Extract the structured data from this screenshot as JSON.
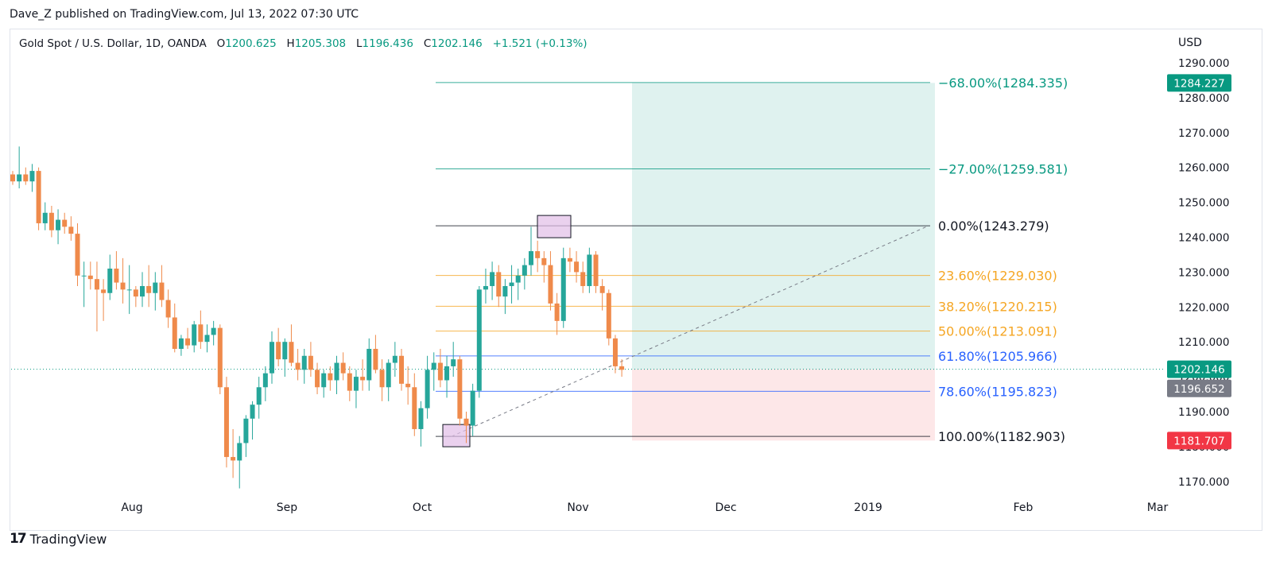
{
  "header": {
    "publisher": "Dave_Z published on TradingView.com, Jul 13, 2022 07:30 UTC"
  },
  "legend": {
    "symbol": "Gold Spot / U.S. Dollar, 1D, OANDA",
    "o_label": "O",
    "o": "1200.625",
    "h_label": "H",
    "h": "1205.308",
    "l_label": "L",
    "l": "1196.436",
    "c_label": "C",
    "c": "1202.146",
    "change": "+1.521 (+0.13%)"
  },
  "footer": {
    "logo_text": "17",
    "brand": "TradingView"
  },
  "colors": {
    "up": "#26a69a",
    "down": "#ef8a4b",
    "accent_green": "#089981",
    "fib_orange": "#f5a623",
    "fib_blue": "#2962ff"
  },
  "chart_data": {
    "type": "candlestick",
    "currency": "USD",
    "ylim": [
      1166,
      1293
    ],
    "y_ticks": [
      "1290.000",
      "1280.000",
      "1270.000",
      "1260.000",
      "1250.000",
      "1240.000",
      "1230.000",
      "1220.000",
      "1210.000",
      "1200.000",
      "1190.000",
      "1180.000",
      "1170.000"
    ],
    "x_ticks": [
      "Aug",
      "Sep",
      "Oct",
      "Nov",
      "Dec",
      "2019",
      "Feb",
      "Mar"
    ],
    "price_badges": [
      {
        "label": "1284.227",
        "value": 1284.227,
        "color": "#089981"
      },
      {
        "label": "1202.146",
        "value": 1202.146,
        "color": "#089981"
      },
      {
        "label": "1196.652",
        "value": 1196.652,
        "color": "#787b86"
      },
      {
        "label": "1181.707",
        "value": 1181.707,
        "color": "#f23645"
      }
    ],
    "fib_levels": [
      {
        "label": "−68.00%(1284.335)",
        "value": 1284.335,
        "color": "#089981"
      },
      {
        "label": "−27.00%(1259.581)",
        "value": 1259.581,
        "color": "#089981"
      },
      {
        "label": "0.00%(1243.279)",
        "value": 1243.279,
        "color": "#131722"
      },
      {
        "label": "23.60%(1229.030)",
        "value": 1229.03,
        "color": "#f5a623"
      },
      {
        "label": "38.20%(1220.215)",
        "value": 1220.215,
        "color": "#f5a623"
      },
      {
        "label": "50.00%(1213.091)",
        "value": 1213.091,
        "color": "#f5a623"
      },
      {
        "label": "61.80%(1205.966)",
        "value": 1205.966,
        "color": "#2962ff"
      },
      {
        "label": "78.60%(1195.823)",
        "value": 1195.823,
        "color": "#2962ff"
      },
      {
        "label": "100.00%(1182.903)",
        "value": 1182.903,
        "color": "#131722"
      }
    ],
    "position": {
      "entry": 1202.146,
      "stop": 1181.707,
      "target": 1284.227
    },
    "candles": [
      [
        1258,
        1259,
        1255,
        1256
      ],
      [
        1256,
        1266,
        1254,
        1258
      ],
      [
        1258,
        1260,
        1255,
        1256
      ],
      [
        1256,
        1261,
        1253,
        1259
      ],
      [
        1259,
        1260,
        1242,
        1244
      ],
      [
        1244,
        1250,
        1242,
        1247
      ],
      [
        1247,
        1249,
        1240,
        1242
      ],
      [
        1242,
        1248,
        1238,
        1245
      ],
      [
        1245,
        1247,
        1241,
        1243
      ],
      [
        1243,
        1246,
        1239,
        1241
      ],
      [
        1241,
        1244,
        1226,
        1229
      ],
      [
        1229,
        1233,
        1220,
        1229
      ],
      [
        1229,
        1233,
        1225,
        1228
      ],
      [
        1228,
        1233,
        1213,
        1225
      ],
      [
        1225,
        1228,
        1216,
        1224
      ],
      [
        1224,
        1235,
        1222,
        1231
      ],
      [
        1231,
        1236,
        1225,
        1227
      ],
      [
        1227,
        1234,
        1221,
        1225
      ],
      [
        1225,
        1232,
        1218,
        1225
      ],
      [
        1225,
        1226,
        1220,
        1223
      ],
      [
        1223,
        1230,
        1220,
        1226
      ],
      [
        1226,
        1232,
        1220,
        1224
      ],
      [
        1224,
        1230,
        1219,
        1227
      ],
      [
        1227,
        1232,
        1220,
        1222
      ],
      [
        1222,
        1225,
        1214,
        1217
      ],
      [
        1217,
        1221,
        1207,
        1208
      ],
      [
        1208,
        1212,
        1206,
        1211
      ],
      [
        1211,
        1214,
        1208,
        1209
      ],
      [
        1209,
        1216,
        1207,
        1215
      ],
      [
        1215,
        1219,
        1208,
        1210
      ],
      [
        1210,
        1215,
        1207,
        1212
      ],
      [
        1212,
        1216,
        1209,
        1214
      ],
      [
        1214,
        1215,
        1195,
        1197
      ],
      [
        1197,
        1200,
        1174,
        1177
      ],
      [
        1177,
        1185,
        1171,
        1176
      ],
      [
        1176,
        1183,
        1168,
        1181
      ],
      [
        1181,
        1189,
        1177,
        1188
      ],
      [
        1188,
        1193,
        1182,
        1192
      ],
      [
        1192,
        1200,
        1188,
        1197
      ],
      [
        1197,
        1203,
        1193,
        1201
      ],
      [
        1201,
        1213,
        1198,
        1210
      ],
      [
        1210,
        1214,
        1203,
        1205
      ],
      [
        1205,
        1211,
        1200,
        1210
      ],
      [
        1210,
        1215,
        1203,
        1204
      ],
      [
        1204,
        1208,
        1199,
        1202
      ],
      [
        1202,
        1208,
        1198,
        1206
      ],
      [
        1206,
        1210,
        1200,
        1202
      ],
      [
        1202,
        1204,
        1195,
        1197
      ],
      [
        1197,
        1202,
        1194,
        1201
      ],
      [
        1201,
        1203,
        1196,
        1199
      ],
      [
        1199,
        1206,
        1195,
        1204
      ],
      [
        1204,
        1207,
        1199,
        1201
      ],
      [
        1201,
        1203,
        1193,
        1196
      ],
      [
        1196,
        1202,
        1191,
        1200
      ],
      [
        1200,
        1205,
        1196,
        1199
      ],
      [
        1199,
        1211,
        1196,
        1208
      ],
      [
        1208,
        1212,
        1201,
        1202
      ],
      [
        1202,
        1205,
        1193,
        1197
      ],
      [
        1197,
        1205,
        1193,
        1204
      ],
      [
        1204,
        1210,
        1200,
        1206
      ],
      [
        1206,
        1208,
        1196,
        1198
      ],
      [
        1198,
        1203,
        1192,
        1197
      ],
      [
        1197,
        1201,
        1183,
        1185
      ],
      [
        1185,
        1193,
        1180,
        1191
      ],
      [
        1191,
        1206,
        1188,
        1202
      ],
      [
        1202,
        1207,
        1196,
        1204
      ],
      [
        1204,
        1208,
        1197,
        1199
      ],
      [
        1199,
        1206,
        1194,
        1203
      ],
      [
        1203,
        1210,
        1200,
        1205
      ],
      [
        1205,
        1206,
        1186,
        1188
      ],
      [
        1188,
        1190,
        1181,
        1186
      ],
      [
        1186,
        1198,
        1183,
        1196
      ],
      [
        1196,
        1226,
        1194,
        1225
      ],
      [
        1225,
        1231,
        1221,
        1226
      ],
      [
        1226,
        1233,
        1222,
        1230
      ],
      [
        1230,
        1232,
        1220,
        1223
      ],
      [
        1223,
        1228,
        1218,
        1226
      ],
      [
        1226,
        1232,
        1221,
        1227
      ],
      [
        1227,
        1231,
        1222,
        1229
      ],
      [
        1229,
        1234,
        1225,
        1232
      ],
      [
        1232,
        1243,
        1229,
        1236
      ],
      [
        1236,
        1239,
        1230,
        1234
      ],
      [
        1234,
        1236,
        1227,
        1232
      ],
      [
        1232,
        1236,
        1219,
        1221
      ],
      [
        1221,
        1224,
        1212,
        1216
      ],
      [
        1216,
        1237,
        1214,
        1234
      ],
      [
        1234,
        1237,
        1230,
        1233
      ],
      [
        1233,
        1236,
        1227,
        1230
      ],
      [
        1230,
        1233,
        1224,
        1226
      ],
      [
        1226,
        1237,
        1224,
        1235
      ],
      [
        1235,
        1236,
        1224,
        1226
      ],
      [
        1226,
        1228,
        1219,
        1224
      ],
      [
        1224,
        1225,
        1209,
        1211
      ],
      [
        1211,
        1212,
        1201,
        1203
      ],
      [
        1203,
        1205,
        1200,
        1202
      ]
    ]
  }
}
